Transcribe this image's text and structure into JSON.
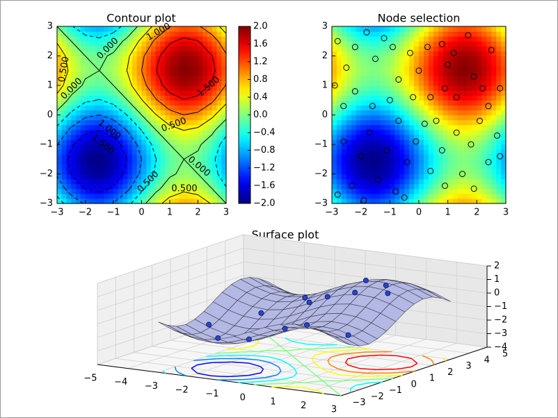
{
  "chart_data": [
    {
      "type": "contour",
      "title": "Contour plot",
      "xlim": [
        -3,
        3
      ],
      "ylim": [
        -3,
        3
      ],
      "xticks": [
        {
          "value": -3,
          "label": "−3"
        },
        {
          "value": -2,
          "label": "−2"
        },
        {
          "value": -1,
          "label": "−1"
        },
        0,
        1,
        2,
        3
      ],
      "yticks": [
        {
          "value": -3,
          "label": "−3"
        },
        {
          "value": -2,
          "label": "−2"
        },
        {
          "value": -1,
          "label": "−1"
        },
        0,
        1,
        2,
        3
      ],
      "clim": [
        -2,
        2
      ],
      "cticks": [
        {
          "value": -2,
          "label": "−2.0"
        },
        {
          "value": -1.6,
          "label": "−1.6"
        },
        {
          "value": -1.2,
          "label": "−1.2"
        },
        {
          "value": -0.8,
          "label": "−0.8"
        },
        {
          "value": -0.4,
          "label": "−0.4"
        },
        {
          "value": 0,
          "label": "0.0"
        },
        {
          "value": 0.4,
          "label": "0.4"
        },
        {
          "value": 0.8,
          "label": "0.8"
        },
        {
          "value": 1.2,
          "label": "1.2"
        },
        {
          "value": 1.6,
          "label": "1.6"
        },
        {
          "value": 2,
          "label": "2.0"
        }
      ],
      "contour_levels": [
        -1.5,
        -1,
        -0.5,
        0,
        0.5,
        1,
        1.5
      ],
      "contour_labels": [
        "1.000",
        "0.000",
        "0.500",
        "0.000",
        "1.500",
        "1.000",
        "1.500",
        "0.500",
        "0.500",
        "0.000",
        "0.500"
      ],
      "grid_x": [
        -3,
        -2.5,
        -2,
        -1.5,
        -1,
        -0.5,
        0,
        0.5,
        1,
        1.5,
        2,
        2.5,
        3
      ],
      "grid_y": [
        -3,
        -2.5,
        -2,
        -1.5,
        -1,
        -0.5,
        0,
        0.5,
        1,
        1.5,
        2,
        2.5,
        3
      ],
      "z": [
        [
          -0.28,
          -0.74,
          -1.05,
          -1.14,
          -0.98,
          -0.62,
          -0.14,
          0.34,
          0.7,
          0.86,
          0.77,
          0.46,
          0
        ],
        [
          -0.74,
          -1.2,
          -1.51,
          -1.6,
          -1.44,
          -1.08,
          -0.6,
          -0.12,
          0.24,
          0.4,
          0.31,
          0,
          -0.46
        ],
        [
          -1.05,
          -1.51,
          -1.82,
          -1.91,
          -1.75,
          -1.39,
          -0.91,
          -0.43,
          -0.07,
          0.09,
          0,
          -0.31,
          -0.77
        ],
        [
          -1.14,
          -1.6,
          -1.91,
          -2,
          -1.84,
          -1.48,
          -1,
          -0.52,
          -0.16,
          0,
          -0.09,
          -0.4,
          -0.86
        ],
        [
          -0.98,
          -1.44,
          -1.75,
          -1.84,
          -1.68,
          -1.32,
          -0.84,
          -0.36,
          0,
          0.16,
          0.07,
          -0.24,
          -0.7
        ],
        [
          -0.62,
          -1.08,
          -1.39,
          -1.48,
          -1.32,
          -0.96,
          -0.48,
          0,
          0.36,
          0.52,
          0.43,
          0.12,
          -0.34
        ],
        [
          -0.14,
          -0.6,
          -0.91,
          -1,
          -0.84,
          -0.48,
          0,
          0.48,
          0.84,
          1,
          0.91,
          0.6,
          0.14
        ],
        [
          0.34,
          -0.12,
          -0.43,
          -0.52,
          -0.36,
          0,
          0.48,
          0.96,
          1.32,
          1.48,
          1.39,
          1.08,
          0.62
        ],
        [
          0.7,
          0.24,
          -0.07,
          -0.16,
          0,
          0.36,
          0.84,
          1.32,
          1.68,
          1.84,
          1.75,
          1.44,
          0.98
        ],
        [
          0.86,
          0.4,
          0.09,
          0,
          0.16,
          0.52,
          1,
          1.48,
          1.84,
          2,
          1.91,
          1.6,
          1.14
        ],
        [
          0.77,
          0.31,
          0,
          -0.09,
          0.07,
          0.43,
          0.91,
          1.39,
          1.75,
          1.91,
          1.82,
          1.51,
          1.05
        ],
        [
          0.46,
          0,
          -0.31,
          -0.4,
          -0.24,
          0.12,
          0.6,
          1.08,
          1.44,
          1.6,
          1.51,
          1.2,
          0.74
        ],
        [
          0,
          -0.46,
          -0.77,
          -0.86,
          -0.7,
          -0.34,
          0.14,
          0.62,
          0.98,
          1.14,
          1.05,
          0.74,
          0.28
        ]
      ]
    },
    {
      "type": "scatter",
      "title": "Node selection",
      "xlim": [
        -3,
        3
      ],
      "ylim": [
        -3,
        3
      ],
      "xticks": [
        {
          "value": -3,
          "label": "−3"
        },
        {
          "value": -2,
          "label": "−2"
        },
        {
          "value": -1,
          "label": "−1"
        },
        0,
        1,
        2,
        3
      ],
      "yticks": [
        {
          "value": -3,
          "label": "−3"
        },
        {
          "value": -2,
          "label": "−2"
        },
        {
          "value": -1,
          "label": "−1"
        },
        0,
        1,
        2,
        3
      ],
      "grid_x": [
        -3,
        -2.5,
        -2,
        -1.5,
        -1,
        -0.5,
        0,
        0.5,
        1,
        1.5,
        2,
        2.5,
        3
      ],
      "grid_y": [
        -3,
        -2.5,
        -2,
        -1.5,
        -1,
        -0.5,
        0,
        0.5,
        1,
        1.5,
        2,
        2.5,
        3
      ],
      "z": [
        [
          -0.28,
          -0.74,
          -1.05,
          -1.14,
          -0.98,
          -0.62,
          -0.14,
          0.34,
          0.7,
          0.86,
          0.77,
          0.46,
          0
        ],
        [
          -0.74,
          -1.2,
          -1.51,
          -1.6,
          -1.44,
          -1.08,
          -0.6,
          -0.12,
          0.24,
          0.4,
          0.31,
          0,
          -0.46
        ],
        [
          -1.05,
          -1.51,
          -1.82,
          -1.91,
          -1.75,
          -1.39,
          -0.91,
          -0.43,
          -0.07,
          0.09,
          0,
          -0.31,
          -0.77
        ],
        [
          -1.14,
          -1.6,
          -1.91,
          -2,
          -1.84,
          -1.48,
          -1,
          -0.52,
          -0.16,
          0,
          -0.09,
          -0.4,
          -0.86
        ],
        [
          -0.98,
          -1.44,
          -1.75,
          -1.84,
          -1.68,
          -1.32,
          -0.84,
          -0.36,
          0,
          0.16,
          0.07,
          -0.24,
          -0.7
        ],
        [
          -0.62,
          -1.08,
          -1.39,
          -1.48,
          -1.32,
          -0.96,
          -0.48,
          0,
          0.36,
          0.52,
          0.43,
          0.12,
          -0.34
        ],
        [
          -0.14,
          -0.6,
          -0.91,
          -1,
          -0.84,
          -0.48,
          0,
          0.48,
          0.84,
          1,
          0.91,
          0.6,
          0.14
        ],
        [
          0.34,
          -0.12,
          -0.43,
          -0.52,
          -0.36,
          0,
          0.48,
          0.96,
          1.32,
          1.48,
          1.39,
          1.08,
          0.62
        ],
        [
          0.7,
          0.24,
          -0.07,
          -0.16,
          0,
          0.36,
          0.84,
          1.32,
          1.68,
          1.84,
          1.75,
          1.44,
          0.98
        ],
        [
          0.86,
          0.4,
          0.09,
          0,
          0.16,
          0.52,
          1,
          1.48,
          1.84,
          2,
          1.91,
          1.6,
          1.14
        ],
        [
          0.77,
          0.31,
          0,
          -0.09,
          0.07,
          0.43,
          0.91,
          1.39,
          1.75,
          1.91,
          1.82,
          1.51,
          1.05
        ],
        [
          0.46,
          0,
          -0.31,
          -0.4,
          -0.24,
          0.12,
          0.6,
          1.08,
          1.44,
          1.6,
          1.51,
          1.2,
          0.74
        ],
        [
          0,
          -0.46,
          -0.77,
          -0.86,
          -0.7,
          -0.34,
          0.14,
          0.62,
          0.98,
          1.14,
          1.05,
          0.74,
          0.28
        ]
      ],
      "x": [
        -2.8,
        -2.5,
        -2.2,
        -1.8,
        -1.5,
        -1.2,
        -0.9,
        -0.7,
        -0.3,
        0,
        0.3,
        0.4,
        0.8,
        0.6,
        0.9,
        1.2,
        1.3,
        1.7,
        1.9,
        2.2,
        2.5,
        2.4,
        2.8,
        2.7,
        2.4,
        2.8,
        1.8,
        1.5,
        1.3,
        0.8,
        0.4,
        0.9,
        1.9,
        -0.1,
        -0.4,
        -0.7,
        -0.8,
        -1.1,
        -1.4,
        -1.7,
        -2,
        -2.3,
        -2.6,
        -2.8,
        -2.6,
        -2.2,
        -1.6,
        -1,
        -0.2,
        0.2,
        -1.9,
        2.1,
        -2.9,
        1,
        -0.5
      ],
      "y": [
        2.5,
        1.6,
        2.3,
        2.8,
        1.9,
        2.6,
        2.3,
        1.2,
        2.1,
        1.5,
        2.3,
        0.6,
        2.4,
        -0.2,
        0.9,
        2.1,
        0.6,
        2.7,
        1.3,
        0.9,
        2.2,
        0.3,
        0.9,
        -0.7,
        -1.6,
        -1.4,
        -1,
        -2,
        -0.6,
        -1.2,
        -1.9,
        -2.4,
        -2.5,
        -0.9,
        -1.6,
        -0.2,
        -2.6,
        -1.2,
        -2.2,
        -0.6,
        -1.4,
        -2.4,
        -0.9,
        -2.7,
        0.3,
        0.8,
        0.3,
        0.5,
        0.6,
        -0.3,
        -2.9,
        -0.2,
        1,
        1.7,
        -2.8
      ]
    },
    {
      "type": "surface",
      "title": "Surface plot",
      "xlim": [
        -5,
        3
      ],
      "ylim": [
        -3,
        5
      ],
      "zlim": [
        -4,
        2
      ],
      "xticks": [
        {
          "value": -5,
          "label": "−5"
        },
        {
          "value": -4,
          "label": "−4"
        },
        {
          "value": -3,
          "label": "−3"
        },
        {
          "value": -2,
          "label": "−2"
        },
        {
          "value": -1,
          "label": "−1"
        },
        0,
        1,
        2,
        3
      ],
      "yticks": [
        {
          "value": -3,
          "label": "−3"
        },
        {
          "value": -2,
          "label": "−2"
        },
        {
          "value": -1,
          "label": "−1"
        },
        0,
        1,
        2,
        3,
        4,
        5
      ],
      "zticks": [
        {
          "value": -4,
          "label": "−4"
        },
        {
          "value": -3,
          "label": "−3"
        },
        {
          "value": -2,
          "label": "−2"
        },
        {
          "value": -1,
          "label": "−1"
        },
        0,
        1,
        2
      ],
      "contour_levels": [
        -1.5,
        -1,
        -0.5,
        0,
        0.5,
        1,
        1.5
      ],
      "grid_x": [
        -3,
        -2.5,
        -2,
        -1.5,
        -1,
        -0.5,
        0,
        0.5,
        1,
        1.5,
        2,
        2.5,
        3
      ],
      "grid_y": [
        -3,
        -2.5,
        -2,
        -1.5,
        -1,
        -0.5,
        0,
        0.5,
        1,
        1.5,
        2,
        2.5,
        3
      ],
      "z": [
        [
          -0.28,
          -0.74,
          -1.05,
          -1.14,
          -0.98,
          -0.62,
          -0.14,
          0.34,
          0.7,
          0.86,
          0.77,
          0.46,
          0
        ],
        [
          -0.74,
          -1.2,
          -1.51,
          -1.6,
          -1.44,
          -1.08,
          -0.6,
          -0.12,
          0.24,
          0.4,
          0.31,
          0,
          -0.46
        ],
        [
          -1.05,
          -1.51,
          -1.82,
          -1.91,
          -1.75,
          -1.39,
          -0.91,
          -0.43,
          -0.07,
          0.09,
          0,
          -0.31,
          -0.77
        ],
        [
          -1.14,
          -1.6,
          -1.91,
          -2,
          -1.84,
          -1.48,
          -1,
          -0.52,
          -0.16,
          0,
          -0.09,
          -0.4,
          -0.86
        ],
        [
          -0.98,
          -1.44,
          -1.75,
          -1.84,
          -1.68,
          -1.32,
          -0.84,
          -0.36,
          0,
          0.16,
          0.07,
          -0.24,
          -0.7
        ],
        [
          -0.62,
          -1.08,
          -1.39,
          -1.48,
          -1.32,
          -0.96,
          -0.48,
          0,
          0.36,
          0.52,
          0.43,
          0.12,
          -0.34
        ],
        [
          -0.14,
          -0.6,
          -0.91,
          -1,
          -0.84,
          -0.48,
          0,
          0.48,
          0.84,
          1,
          0.91,
          0.6,
          0.14
        ],
        [
          0.34,
          -0.12,
          -0.43,
          -0.52,
          -0.36,
          0,
          0.48,
          0.96,
          1.32,
          1.48,
          1.39,
          1.08,
          0.62
        ],
        [
          0.7,
          0.24,
          -0.07,
          -0.16,
          0,
          0.36,
          0.84,
          1.32,
          1.68,
          1.84,
          1.75,
          1.44,
          0.98
        ],
        [
          0.86,
          0.4,
          0.09,
          0,
          0.16,
          0.52,
          1,
          1.48,
          1.84,
          2,
          1.91,
          1.6,
          1.14
        ],
        [
          0.77,
          0.31,
          0,
          -0.09,
          0.07,
          0.43,
          0.91,
          1.39,
          1.75,
          1.91,
          1.82,
          1.51,
          1.05
        ],
        [
          0.46,
          0,
          -0.31,
          -0.4,
          -0.24,
          0.12,
          0.6,
          1.08,
          1.44,
          1.6,
          1.51,
          1.2,
          0.74
        ],
        [
          0,
          -0.46,
          -0.77,
          -0.86,
          -0.7,
          -0.34,
          0.14,
          0.62,
          0.98,
          1.14,
          1.05,
          0.74,
          0.28
        ]
      ],
      "surface_color": "#b4b8e4",
      "points": {
        "color": "#2a45c8",
        "x": [
          -0.7,
          0.4,
          1.3,
          1.9,
          2.2,
          0.8,
          -0.1,
          -1.1,
          -2,
          -1.6,
          2.4,
          -0.2,
          1,
          -2.6
        ],
        "y": [
          1.2,
          0.6,
          0.6,
          1.3,
          0.9,
          -1.2,
          -0.9,
          -1.2,
          -1.4,
          0.3,
          -1.6,
          0.6,
          1.7,
          -0.9
        ],
        "z": [
          0.29,
          0.95,
          1.52,
          1.91,
          1.59,
          -0.21,
          -0.88,
          -1.82,
          -1.9,
          -0.7,
          -0.32,
          0.36,
          1.83,
          -1.3
        ]
      }
    }
  ]
}
